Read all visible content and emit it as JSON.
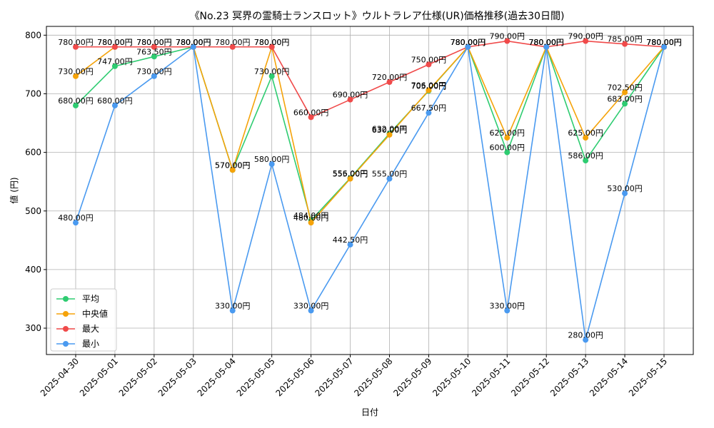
{
  "chart_data": {
    "type": "line",
    "title": "《No.23 冥界の霊騎士ランスロット》ウルトラレア仕様(UR)価格推移(過去30日間)",
    "xlabel": "日付",
    "ylabel": "値 (円)",
    "ylim": [
      255,
      815
    ],
    "yticks": [
      300,
      400,
      500,
      600,
      700,
      800
    ],
    "grid": true,
    "legend_position": "bottom-left",
    "label_suffix": "円",
    "categories": [
      "2025-04-30",
      "2025-05-01",
      "2025-05-02",
      "2025-05-03",
      "2025-05-04",
      "2025-05-05",
      "2025-05-06",
      "2025-05-07",
      "2025-05-08",
      "2025-05-09",
      "2025-05-10",
      "2025-05-11",
      "2025-05-12",
      "2025-05-13",
      "2025-05-14",
      "2025-05-15"
    ],
    "series": [
      {
        "name": "平均",
        "color": "#2ecc71",
        "values": [
          680,
          747,
          763.5,
          780,
          570,
          730,
          484,
          556,
          632,
          705,
          780,
          600,
          780,
          586,
          683,
          780
        ]
      },
      {
        "name": "中央値",
        "color": "#f5a30a",
        "values": [
          730,
          780,
          780,
          780,
          570,
          780,
          480,
          555,
          630,
          706,
          780,
          625,
          780,
          625,
          702.5,
          780
        ]
      },
      {
        "name": "最大",
        "color": "#f04a4a",
        "values": [
          780,
          780,
          780,
          780,
          780,
          780,
          660,
          690,
          720,
          750,
          780,
          790,
          780,
          790,
          785,
          780
        ]
      },
      {
        "name": "最小",
        "color": "#4a9af0",
        "values": [
          480,
          680,
          730,
          780,
          330,
          580,
          330,
          442.5,
          555,
          667.5,
          780,
          330,
          780,
          280,
          530,
          780
        ]
      }
    ]
  }
}
